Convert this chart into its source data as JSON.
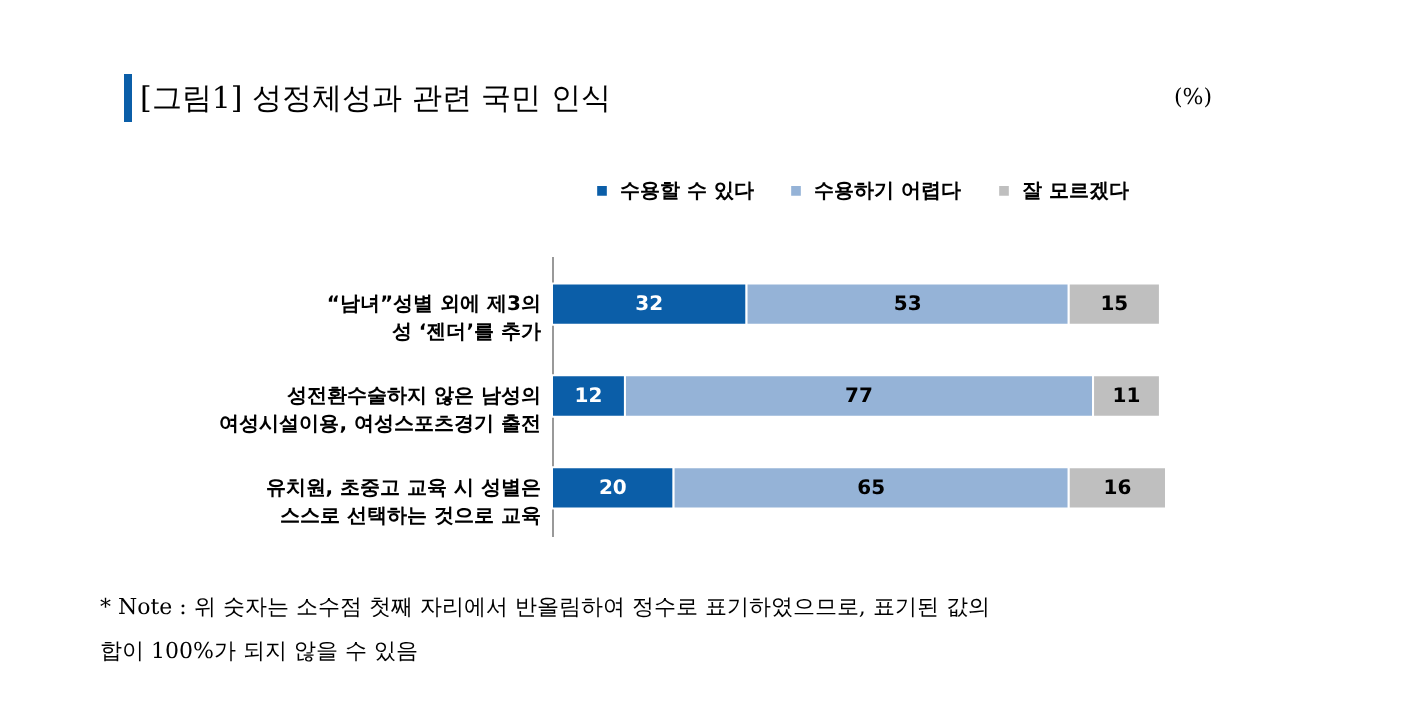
{
  "chart_data": {
    "type": "bar",
    "orientation": "horizontal",
    "stacked": true,
    "tick_labels": "y",
    "data_labels": true,
    "legend": "top right",
    "title": "[그림1] 성정체성과 관련 국민 인식",
    "categories": [
      "“남녀”성별 외에 제3의\n성 ‘젠더’를 추가",
      "성전환수술하지 않은 남성의\n여성시설이용, 여성스포츠경기 출전",
      "유치원, 초중고 교육 시 성별은\n스스로 선택하는 것으로 교육"
    ],
    "series": [
      {
        "name": "수용할 수 있다",
        "color": "#0b5ea8",
        "values": [
          32,
          12,
          20
        ]
      },
      {
        "name": "수용하기 어렵다",
        "color": "#95b3d7",
        "values": [
          53,
          77,
          65
        ]
      },
      {
        "name": "잘 모르겠다",
        "color": "#bfbfbf",
        "values": [
          15,
          11,
          16
        ]
      }
    ],
    "annotations": [
      "(%)",
      "* Note : 위 숫자는 소수점 첫째 자리에서 반올림하여 정수로 표기하였으므로, 표기된 값의\n합이 100%가 되지 않을 수 있음"
    ]
  }
}
